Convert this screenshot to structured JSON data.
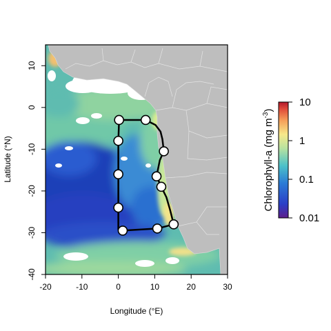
{
  "chart_data": {
    "type": "map",
    "xlabel": "Longitude (°E)",
    "ylabel": "Latitude (°N)",
    "xlim": [
      -20,
      30
    ],
    "ylim": [
      -40,
      15
    ],
    "x_ticks": [
      "-20",
      "-10",
      "0",
      "10",
      "20",
      "30"
    ],
    "y_ticks": [
      "10",
      "0",
      "-10",
      "-20",
      "-30",
      "-40"
    ],
    "x_tick_values": [
      -20,
      -10,
      0,
      10,
      20,
      30
    ],
    "y_tick_values": [
      10,
      0,
      -10,
      -20,
      -30,
      -40
    ],
    "colorbar": {
      "title": "Chlorophyll-a (mg m",
      "title_superscript": "-3",
      "title_close": ")",
      "scale": "log",
      "range": [
        0.01,
        10
      ],
      "tick_labels": [
        "10",
        "1",
        "0.1",
        "0.01"
      ],
      "tick_values": [
        10,
        1,
        0.1,
        0.01
      ],
      "colors": [
        "#5e1f8c",
        "#2b3fc7",
        "#2b7cd6",
        "#4cc1c9",
        "#b7e2a0",
        "#f7e98a",
        "#f6a05a",
        "#e04a3a",
        "#b2182b"
      ]
    },
    "land_color": "#bebebe",
    "cruise_track": {
      "line_color": "#000000",
      "marker_color": "#ffffff",
      "stations": [
        {
          "lon": 0.2,
          "lat": -3.0
        },
        {
          "lon": 7.5,
          "lat": -3.0
        },
        {
          "lon": 0.0,
          "lat": -8.0
        },
        {
          "lon": 12.5,
          "lat": -10.5
        },
        {
          "lon": 0.0,
          "lat": -16.0
        },
        {
          "lon": 10.5,
          "lat": -16.5
        },
        {
          "lon": 11.8,
          "lat": -19.0
        },
        {
          "lon": 0.0,
          "lat": -24.0
        },
        {
          "lon": 15.2,
          "lat": -28.0
        },
        {
          "lon": 10.7,
          "lat": -29.0
        },
        {
          "lon": 1.2,
          "lat": -29.5
        }
      ],
      "track": [
        [
          0.2,
          -3.0
        ],
        [
          7.5,
          -3.0
        ],
        [
          10.2,
          -4.2
        ],
        [
          11.6,
          -5.8
        ],
        [
          12.1,
          -7.6
        ],
        [
          12.5,
          -10.5
        ],
        [
          11.4,
          -12.6
        ],
        [
          10.5,
          -16.5
        ],
        [
          11.8,
          -19.0
        ],
        [
          13.2,
          -21.5
        ],
        [
          14.2,
          -24.5
        ],
        [
          15.2,
          -28.0
        ],
        [
          10.7,
          -29.0
        ],
        [
          1.2,
          -29.5
        ],
        [
          0.0,
          -29.2
        ],
        [
          0.0,
          -24.0
        ],
        [
          0.0,
          -16.0
        ],
        [
          0.0,
          -8.0
        ],
        [
          0.2,
          -3.0
        ]
      ]
    }
  }
}
